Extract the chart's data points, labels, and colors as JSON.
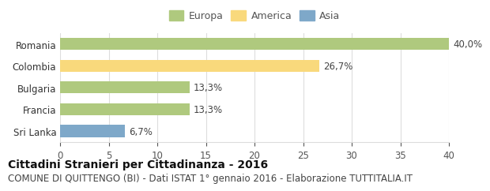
{
  "categories": [
    "Sri Lanka",
    "Francia",
    "Bulgaria",
    "Colombia",
    "Romania"
  ],
  "values": [
    6.7,
    13.3,
    13.3,
    26.7,
    40.0
  ],
  "labels": [
    "6,7%",
    "13,3%",
    "13,3%",
    "26,7%",
    "40,0%"
  ],
  "bar_colors": [
    "#7ea8c9",
    "#afc97e",
    "#afc97e",
    "#f9d97c",
    "#afc97e"
  ],
  "legend_labels": [
    "Europa",
    "America",
    "Asia"
  ],
  "legend_colors": [
    "#afc97e",
    "#f9d97c",
    "#7ea8c9"
  ],
  "xlim": [
    0,
    40
  ],
  "xticks": [
    0,
    5,
    10,
    15,
    20,
    25,
    30,
    35,
    40
  ],
  "title_bold": "Cittadini Stranieri per Cittadinanza - 2016",
  "subtitle": "COMUNE DI QUITTENGO (BI) - Dati ISTAT 1° gennaio 2016 - Elaborazione TUTTITALIA.IT",
  "background_color": "#ffffff",
  "grid_color": "#dddddd",
  "bar_height": 0.55,
  "label_fontsize": 8.5,
  "tick_fontsize": 8.5,
  "legend_fontsize": 9,
  "title_fontsize": 10,
  "subtitle_fontsize": 8.5
}
